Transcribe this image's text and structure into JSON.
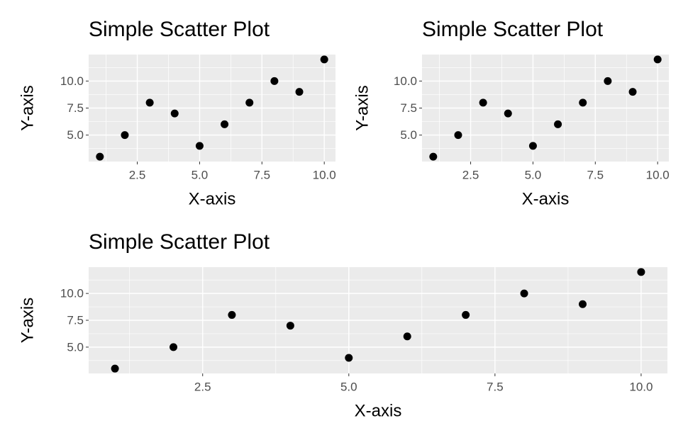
{
  "chart_data": [
    {
      "type": "scatter",
      "title": "Simple Scatter Plot",
      "x_label": "X-axis",
      "y_label": "Y-axis",
      "x": [
        1,
        2,
        3,
        4,
        5,
        6,
        7,
        8,
        9,
        10
      ],
      "y": [
        3,
        5,
        8,
        7,
        4,
        6,
        8,
        10,
        9,
        12
      ],
      "color": "#000000",
      "xlim": [
        0.55,
        10.45
      ],
      "ylim": [
        2.55,
        12.45
      ],
      "xticks": [
        2.5,
        {
          "value": 5,
          "label": "5.0"
        },
        7.5,
        {
          "value": 10,
          "label": "10.0"
        }
      ],
      "yticks": [
        {
          "value": 5,
          "label": "5.0"
        },
        7.5,
        {
          "value": 10,
          "label": "10.0"
        }
      ],
      "grid": true
    },
    {
      "type": "scatter",
      "title": "Simple Scatter Plot",
      "x_label": "X-axis",
      "y_label": "Y-axis",
      "x": [
        1,
        2,
        3,
        4,
        5,
        6,
        7,
        8,
        9,
        10
      ],
      "y": [
        3,
        5,
        8,
        7,
        4,
        6,
        8,
        10,
        9,
        12
      ],
      "color": "#000000",
      "xlim": [
        0.55,
        10.45
      ],
      "ylim": [
        2.55,
        12.45
      ],
      "xticks": [
        2.5,
        {
          "value": 5,
          "label": "5.0"
        },
        7.5,
        {
          "value": 10,
          "label": "10.0"
        }
      ],
      "yticks": [
        {
          "value": 5,
          "label": "5.0"
        },
        7.5,
        {
          "value": 10,
          "label": "10.0"
        }
      ],
      "grid": true
    },
    {
      "type": "scatter",
      "title": "Simple Scatter Plot",
      "x_label": "X-axis",
      "y_label": "Y-axis",
      "x": [
        1,
        2,
        3,
        4,
        5,
        6,
        7,
        8,
        9,
        10
      ],
      "y": [
        3,
        5,
        8,
        7,
        4,
        6,
        8,
        10,
        9,
        12
      ],
      "color": "#000000",
      "xlim": [
        0.55,
        10.45
      ],
      "ylim": [
        2.55,
        12.45
      ],
      "xticks": [
        2.5,
        {
          "value": 5,
          "label": "5.0"
        },
        7.5,
        {
          "value": 10,
          "label": "10.0"
        }
      ],
      "yticks": [
        {
          "value": 5,
          "label": "5.0"
        },
        7.5,
        {
          "value": 10,
          "label": "10.0"
        }
      ],
      "grid": true
    }
  ]
}
